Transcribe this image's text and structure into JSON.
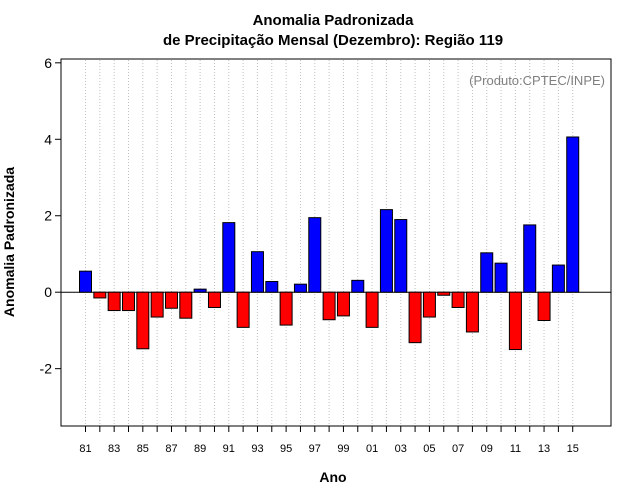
{
  "chart_data": {
    "type": "bar",
    "title": "Anomalia Padronizada",
    "subtitle": "de Precipitação Mensal (Dezembro): Região 119",
    "xlabel": "Ano",
    "ylabel": "Anomalia Padronizada",
    "annotation": "(Produto:CPTEC/INPE)",
    "ylim": [
      -3.5,
      6.1
    ],
    "yticks": [
      -2,
      0,
      2,
      4,
      6
    ],
    "grid": "vertical dotted",
    "years": [
      1981,
      1982,
      1983,
      1984,
      1985,
      1986,
      1987,
      1988,
      1989,
      1990,
      1991,
      1992,
      1993,
      1994,
      1995,
      1996,
      1997,
      1998,
      1999,
      2000,
      2001,
      2002,
      2003,
      2004,
      2005,
      2006,
      2007,
      2008,
      2009,
      2010,
      2011,
      2012,
      2013,
      2014,
      2015
    ],
    "tick_labels": [
      "81",
      "83",
      "85",
      "87",
      "89",
      "91",
      "93",
      "95",
      "97",
      "99",
      "01",
      "03",
      "05",
      "07",
      "09",
      "11",
      "13",
      "15"
    ],
    "values": [
      0.55,
      -0.15,
      -0.48,
      -0.48,
      -1.48,
      -0.65,
      -0.42,
      -0.68,
      0.08,
      -0.4,
      1.82,
      -0.92,
      1.06,
      0.28,
      -0.86,
      0.21,
      1.95,
      -0.72,
      -0.62,
      0.31,
      -0.92,
      2.16,
      1.9,
      -1.32,
      -0.65,
      -0.08,
      -0.4,
      -1.04,
      1.03,
      0.76,
      -1.5,
      1.76,
      -0.74,
      0.71,
      4.06
    ],
    "colors": {
      "positive": "#0000ff",
      "negative": "#ff0000",
      "outline": "#000000",
      "grid": "#c0c0c0"
    }
  }
}
